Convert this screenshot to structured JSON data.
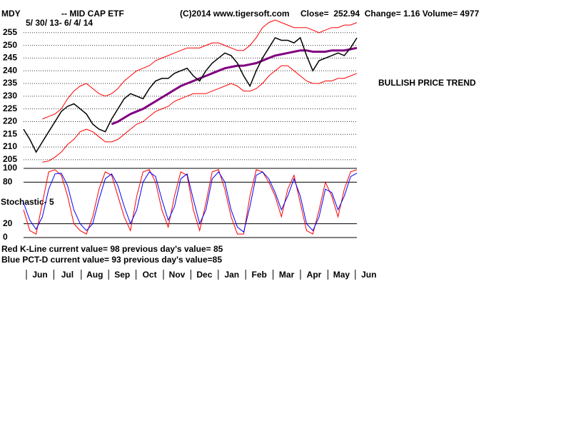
{
  "header": {
    "ticker": "MDY",
    "name": "-- MID CAP ETF",
    "copyright": "(C)2014 www.tigersoft.com",
    "quote": "Close=  252.94  Change= 1.16 Volume= 4977",
    "range": "5/ 30/ 13- 6/ 4/ 14"
  },
  "chart_data": [
    {
      "type": "line",
      "annotations": [
        "BULLISH PRICE TREND"
      ],
      "ylim": [
        203,
        260
      ],
      "yticks": [
        205,
        210,
        215,
        220,
        225,
        230,
        235,
        240,
        245,
        250,
        255
      ],
      "grid": true,
      "series": [
        {
          "color": "#ff0000",
          "width": 1,
          "values": [
            null,
            null,
            null,
            221,
            222,
            223,
            225,
            229,
            232,
            234,
            235,
            233,
            231,
            230,
            231,
            233,
            236,
            238,
            240,
            241,
            242,
            244,
            245,
            246,
            247,
            248,
            249,
            249,
            249,
            250,
            251,
            251,
            250,
            249,
            248,
            248,
            250,
            253,
            257,
            259,
            260,
            259,
            258,
            257,
            257,
            257,
            256,
            255,
            256,
            257,
            257,
            258,
            258,
            259
          ]
        },
        {
          "color": "#ff0000",
          "width": 1,
          "values": [
            null,
            null,
            null,
            204,
            204.5,
            206,
            208,
            211,
            213,
            216,
            217,
            216,
            214,
            212,
            212,
            213,
            215,
            217,
            219,
            220,
            222,
            224,
            225,
            226,
            228,
            229,
            230,
            231,
            231,
            231,
            232,
            233,
            234,
            235,
            234,
            232,
            232,
            233,
            235,
            238,
            240,
            242,
            242,
            240,
            238,
            236,
            235,
            235,
            236,
            236,
            237,
            237,
            238,
            239
          ]
        },
        {
          "color": "#800080",
          "width": 3,
          "values": [
            null,
            null,
            null,
            null,
            null,
            null,
            null,
            null,
            null,
            null,
            null,
            null,
            null,
            null,
            219,
            220,
            221.5,
            223,
            224,
            225,
            226.5,
            228,
            229.5,
            231,
            232.5,
            234,
            235,
            236,
            237,
            238,
            239,
            240,
            241,
            241.5,
            242,
            242,
            242.5,
            243,
            244,
            245,
            246,
            246.5,
            247,
            247.5,
            248,
            248,
            247.5,
            247.5,
            247.5,
            248,
            248,
            248,
            248.5,
            249
          ]
        },
        {
          "color": "#000000",
          "width": 1.5,
          "values": [
            217,
            213,
            208,
            212,
            216,
            220,
            224,
            226,
            227,
            225,
            223,
            219,
            217,
            216,
            221,
            225,
            229,
            231,
            230,
            229,
            233,
            236,
            237,
            237,
            239,
            240,
            241,
            238,
            236,
            240,
            243,
            245,
            247,
            246,
            243,
            238,
            234,
            240,
            245,
            249,
            253,
            252,
            252,
            251,
            253,
            246,
            240,
            244,
            245,
            246,
            247,
            246,
            249,
            252.94
          ]
        }
      ]
    },
    {
      "type": "line",
      "title": "Stochastic- 5",
      "notes": [
        "Red K-Line current value= 98 previous day's value= 85",
        "Blue PCT-D current value= 93 previous day's value=85"
      ],
      "month_labels": [
        "Jun",
        "Jul",
        "Aug",
        "Sep",
        "Oct",
        "Nov",
        "Dec",
        "Jan",
        "Feb",
        "Mar",
        "Apr",
        "May",
        "Jun"
      ],
      "ylim": [
        0,
        100
      ],
      "yticks": [
        0,
        20,
        80,
        100
      ],
      "grid": true,
      "series": [
        {
          "color": "#ff0000",
          "width": 1,
          "values": [
            40,
            10,
            5,
            50,
            95,
            98,
            90,
            60,
            20,
            10,
            5,
            30,
            70,
            95,
            90,
            60,
            30,
            10,
            60,
            95,
            98,
            80,
            40,
            15,
            60,
            95,
            90,
            40,
            10,
            50,
            95,
            98,
            70,
            30,
            5,
            5,
            60,
            98,
            95,
            80,
            60,
            30,
            70,
            90,
            50,
            10,
            5,
            40,
            80,
            60,
            30,
            70,
            95,
            98
          ]
        },
        {
          "color": "#0000ff",
          "width": 1,
          "values": [
            50,
            25,
            12,
            30,
            70,
            92,
            93,
            75,
            40,
            20,
            10,
            20,
            55,
            85,
            92,
            75,
            45,
            20,
            40,
            80,
            95,
            88,
            55,
            25,
            45,
            85,
            92,
            55,
            20,
            40,
            85,
            95,
            80,
            40,
            15,
            8,
            45,
            90,
            95,
            85,
            65,
            40,
            60,
            85,
            60,
            20,
            10,
            30,
            70,
            65,
            40,
            60,
            88,
            93
          ]
        }
      ]
    }
  ]
}
